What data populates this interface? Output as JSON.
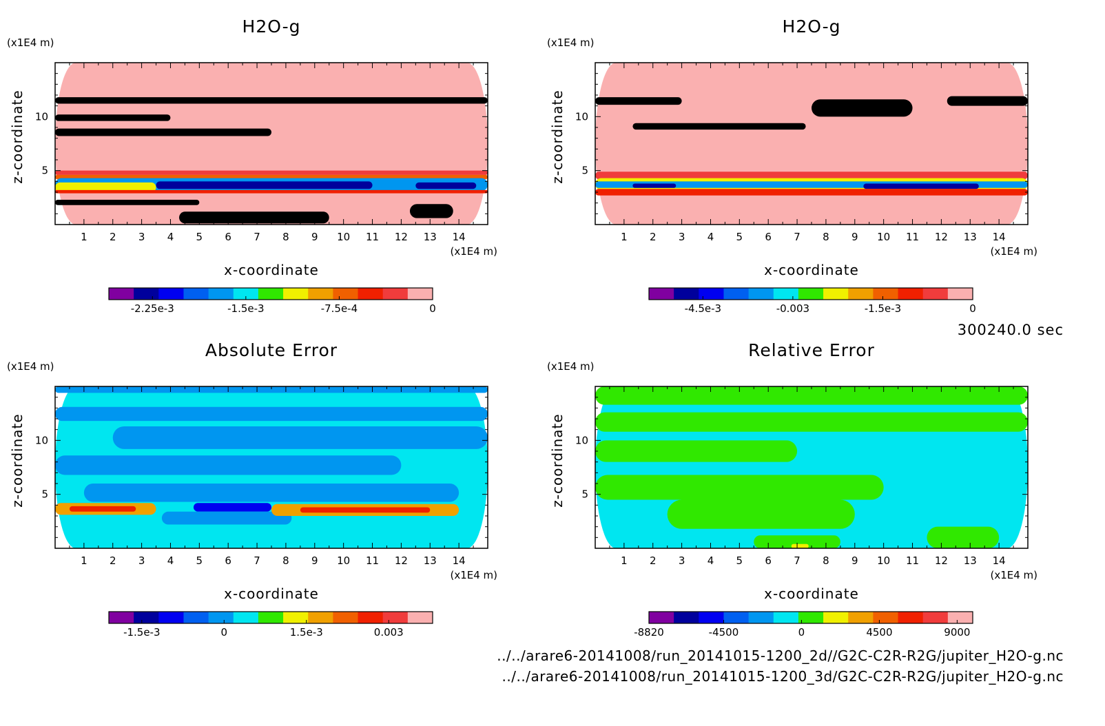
{
  "colors": {
    "cbar": [
      "#8000a0",
      "#00009c",
      "#0000f0",
      "#0060f0",
      "#0096f0",
      "#00e6f0",
      "#30e800",
      "#f0f000",
      "#f0a000",
      "#f06000",
      "#f02000",
      "#f03c3c",
      "#fab0b0"
    ],
    "frame": "#000000"
  },
  "panels": [
    {
      "title": "H2O-g",
      "yunit": "(x1E4 m)",
      "xunit": "(x1E4 m)",
      "ylabel": "z-coordinate",
      "xlabel": "x-coordinate",
      "xticks": [
        "1",
        "2",
        "3",
        "4",
        "5",
        "6",
        "7",
        "8",
        "9",
        "10",
        "11",
        "12",
        "13",
        "14"
      ],
      "yticks": [
        "5",
        "10"
      ],
      "cbar_labels": [
        "-2.25e-3",
        "-1.5e-3",
        "-7.5e-4",
        "0"
      ]
    },
    {
      "title": "H2O-g",
      "yunit": "(x1E4 m)",
      "xunit": "(x1E4 m)",
      "ylabel": "z-coordinate",
      "xlabel": "x-coordinate",
      "xticks": [
        "1",
        "2",
        "3",
        "4",
        "5",
        "6",
        "7",
        "8",
        "9",
        "10",
        "11",
        "12",
        "13",
        "14"
      ],
      "yticks": [
        "5",
        "10"
      ],
      "cbar_labels": [
        "-4.5e-3",
        "-0.003",
        "-1.5e-3",
        "0"
      ]
    },
    {
      "title": "Absolute Error",
      "yunit": "(x1E4 m)",
      "xunit": "(x1E4 m)",
      "ylabel": "z-coordinate",
      "xlabel": "x-coordinate",
      "xticks": [
        "1",
        "2",
        "3",
        "4",
        "5",
        "6",
        "7",
        "8",
        "9",
        "10",
        "11",
        "12",
        "13",
        "14"
      ],
      "yticks": [
        "5",
        "10"
      ],
      "cbar_labels": [
        "-1.5e-3",
        "0",
        "1.5e-3",
        "0.003"
      ]
    },
    {
      "title": "Relative Error",
      "yunit": "(x1E4 m)",
      "xunit": "(x1E4 m)",
      "ylabel": "z-coordinate",
      "xlabel": "x-coordinate",
      "xticks": [
        "1",
        "2",
        "3",
        "4",
        "5",
        "6",
        "7",
        "8",
        "9",
        "10",
        "11",
        "12",
        "13",
        "14"
      ],
      "yticks": [
        "5",
        "10"
      ],
      "cbar_labels": [
        "-8820",
        "-4500",
        "0",
        "4500",
        "9000"
      ]
    }
  ],
  "time_label": "300240.0 sec",
  "files": [
    "../../arare6-20141008/run_20141015-1200_2d//G2C-C2R-R2G/jupiter_H2O-g.nc",
    "../../arare6-20141008/run_20141015-1200_3d/G2C-C2R-R2G/jupiter_H2O-g.nc"
  ],
  "chart_data": [
    {
      "type": "heatmap",
      "title": "H2O-g",
      "xlabel": "x-coordinate",
      "ylabel": "z-coordinate",
      "x_unit": "(x1E4 m)",
      "y_unit": "(x1E4 m)",
      "xlim": [
        0,
        15
      ],
      "ylim": [
        0,
        15
      ],
      "colorbar_min": -0.0026,
      "colorbar_max": 0,
      "colorbar_ticks": [
        -0.00225,
        -0.0015,
        -0.00075,
        0
      ],
      "colorbar_labels": [
        "-2.25e-3",
        "-1.5e-3",
        "-7.5e-4",
        "0"
      ],
      "bands": [
        {
          "level": 12,
          "x": [
            0,
            15
          ],
          "z": [
            0,
            15
          ]
        },
        {
          "level": 13,
          "x": [
            0,
            15
          ],
          "z": [
            11.2,
            11.8
          ]
        },
        {
          "level": 13,
          "x": [
            0,
            4
          ],
          "z": [
            9.6,
            10.2
          ]
        },
        {
          "level": 13,
          "x": [
            0,
            7.5
          ],
          "z": [
            8.2,
            8.9
          ]
        },
        {
          "level": 11,
          "x": [
            0,
            15
          ],
          "z": [
            4.6,
            5.0
          ]
        },
        {
          "level": 9,
          "x": [
            0,
            15
          ],
          "z": [
            4.2,
            4.6
          ]
        },
        {
          "level": 4,
          "x": [
            0,
            15
          ],
          "z": [
            3.1,
            4.3
          ]
        },
        {
          "level": 1,
          "x": [
            3.5,
            11
          ],
          "z": [
            3.3,
            4.0
          ]
        },
        {
          "level": 1,
          "x": [
            12.5,
            14.6
          ],
          "z": [
            3.3,
            3.9
          ]
        },
        {
          "level": 7,
          "x": [
            0,
            3.5
          ],
          "z": [
            3.0,
            3.9
          ]
        },
        {
          "level": 10,
          "x": [
            0,
            15
          ],
          "z": [
            2.9,
            3.2
          ]
        },
        {
          "level": 13,
          "x": [
            0,
            5
          ],
          "z": [
            1.8,
            2.3
          ]
        },
        {
          "level": 13,
          "x": [
            4.3,
            9.5
          ],
          "z": [
            0.1,
            1.2
          ]
        },
        {
          "level": 13,
          "x": [
            12.3,
            13.8
          ],
          "z": [
            0.6,
            1.9
          ]
        }
      ]
    },
    {
      "type": "heatmap",
      "title": "H2O-g",
      "xlabel": "x-coordinate",
      "ylabel": "z-coordinate",
      "x_unit": "(x1E4 m)",
      "y_unit": "(x1E4 m)",
      "xlim": [
        0,
        15
      ],
      "ylim": [
        0,
        15
      ],
      "colorbar_min": -0.0054,
      "colorbar_max": 0,
      "colorbar_ticks": [
        -0.0045,
        -0.003,
        -0.0015,
        0
      ],
      "colorbar_labels": [
        "-4.5e-3",
        "-0.003",
        "-1.5e-3",
        "0"
      ],
      "bands": [
        {
          "level": 12,
          "x": [
            0,
            15
          ],
          "z": [
            0,
            15
          ]
        },
        {
          "level": 13,
          "x": [
            0,
            3
          ],
          "z": [
            11.1,
            11.8
          ]
        },
        {
          "level": 13,
          "x": [
            7.5,
            11
          ],
          "z": [
            10,
            11.6
          ]
        },
        {
          "level": 13,
          "x": [
            12.2,
            15
          ],
          "z": [
            11,
            11.9
          ]
        },
        {
          "level": 13,
          "x": [
            1.3,
            7.3
          ],
          "z": [
            8.8,
            9.4
          ]
        },
        {
          "level": 11,
          "x": [
            0,
            15
          ],
          "z": [
            4.2,
            4.9
          ]
        },
        {
          "level": 7,
          "x": [
            0,
            15
          ],
          "z": [
            3.2,
            4.3
          ]
        },
        {
          "level": 4,
          "x": [
            0,
            15
          ],
          "z": [
            3.4,
            4.0
          ]
        },
        {
          "level": 1,
          "x": [
            1.3,
            2.8
          ],
          "z": [
            3.4,
            3.8
          ]
        },
        {
          "level": 1,
          "x": [
            9.3,
            13.3
          ],
          "z": [
            3.3,
            3.8
          ]
        },
        {
          "level": 10,
          "x": [
            0,
            15
          ],
          "z": [
            2.7,
            3.3
          ]
        }
      ]
    },
    {
      "type": "heatmap",
      "title": "Absolute Error",
      "xlabel": "x-coordinate",
      "ylabel": "z-coordinate",
      "x_unit": "(x1E4 m)",
      "y_unit": "(x1E4 m)",
      "xlim": [
        0,
        15
      ],
      "ylim": [
        0,
        15
      ],
      "colorbar_min": -0.0021,
      "colorbar_max": 0.0038,
      "colorbar_ticks": [
        -0.0015,
        0,
        0.0015,
        0.003
      ],
      "colorbar_labels": [
        "-1.5e-3",
        "0",
        "1.5e-3",
        "0.003"
      ],
      "bands": [
        {
          "level": 5,
          "x": [
            0,
            15
          ],
          "z": [
            0,
            15
          ]
        },
        {
          "level": 4,
          "x": [
            0,
            15
          ],
          "z": [
            14.4,
            15
          ]
        },
        {
          "level": 4,
          "x": [
            0,
            15
          ],
          "z": [
            11.8,
            13.1
          ]
        },
        {
          "level": 4,
          "x": [
            2,
            15
          ],
          "z": [
            9.2,
            11.3
          ]
        },
        {
          "level": 4,
          "x": [
            0,
            12
          ],
          "z": [
            6.8,
            8.6
          ]
        },
        {
          "level": 4,
          "x": [
            1,
            14
          ],
          "z": [
            4.3,
            6.0
          ]
        },
        {
          "level": 2,
          "x": [
            4.8,
            7.5
          ],
          "z": [
            3.4,
            4.2
          ]
        },
        {
          "level": 4,
          "x": [
            3.7,
            8.2
          ],
          "z": [
            2.2,
            3.4
          ]
        },
        {
          "level": 8,
          "x": [
            0,
            3.5
          ],
          "z": [
            3.1,
            4.2
          ]
        },
        {
          "level": 10,
          "x": [
            0.5,
            2.8
          ],
          "z": [
            3.4,
            3.9
          ]
        },
        {
          "level": 8,
          "x": [
            7.5,
            14
          ],
          "z": [
            3.0,
            4.1
          ]
        },
        {
          "level": 10,
          "x": [
            8.5,
            13
          ],
          "z": [
            3.3,
            3.8
          ]
        }
      ]
    },
    {
      "type": "heatmap",
      "title": "Relative Error",
      "xlabel": "x-coordinate",
      "ylabel": "z-coordinate",
      "x_unit": "(x1E4 m)",
      "y_unit": "(x1E4 m)",
      "xlim": [
        0,
        15
      ],
      "ylim": [
        0,
        15
      ],
      "colorbar_min": -8820,
      "colorbar_max": 9900,
      "colorbar_ticks": [
        -8820,
        -4500,
        0,
        4500,
        9000
      ],
      "colorbar_labels": [
        "-8820",
        "-4500",
        "0",
        "4500",
        "9000"
      ],
      "bands": [
        {
          "level": 5,
          "x": [
            0,
            15
          ],
          "z": [
            0,
            15
          ]
        },
        {
          "level": 6,
          "x": [
            0,
            15
          ],
          "z": [
            13.3,
            15
          ]
        },
        {
          "level": 6,
          "x": [
            0,
            15
          ],
          "z": [
            10.8,
            12.6
          ]
        },
        {
          "level": 6,
          "x": [
            0,
            7
          ],
          "z": [
            8.0,
            10.0
          ]
        },
        {
          "level": 6,
          "x": [
            0,
            10
          ],
          "z": [
            4.5,
            6.8
          ]
        },
        {
          "level": 6,
          "x": [
            2.5,
            9
          ],
          "z": [
            1.8,
            4.5
          ]
        },
        {
          "level": 6,
          "x": [
            11.5,
            14
          ],
          "z": [
            0,
            2.0
          ]
        },
        {
          "level": 6,
          "x": [
            5.5,
            8.5
          ],
          "z": [
            0,
            1.2
          ]
        },
        {
          "level": 7,
          "x": [
            6.8,
            7.4
          ],
          "z": [
            0,
            0.4
          ]
        }
      ]
    }
  ]
}
